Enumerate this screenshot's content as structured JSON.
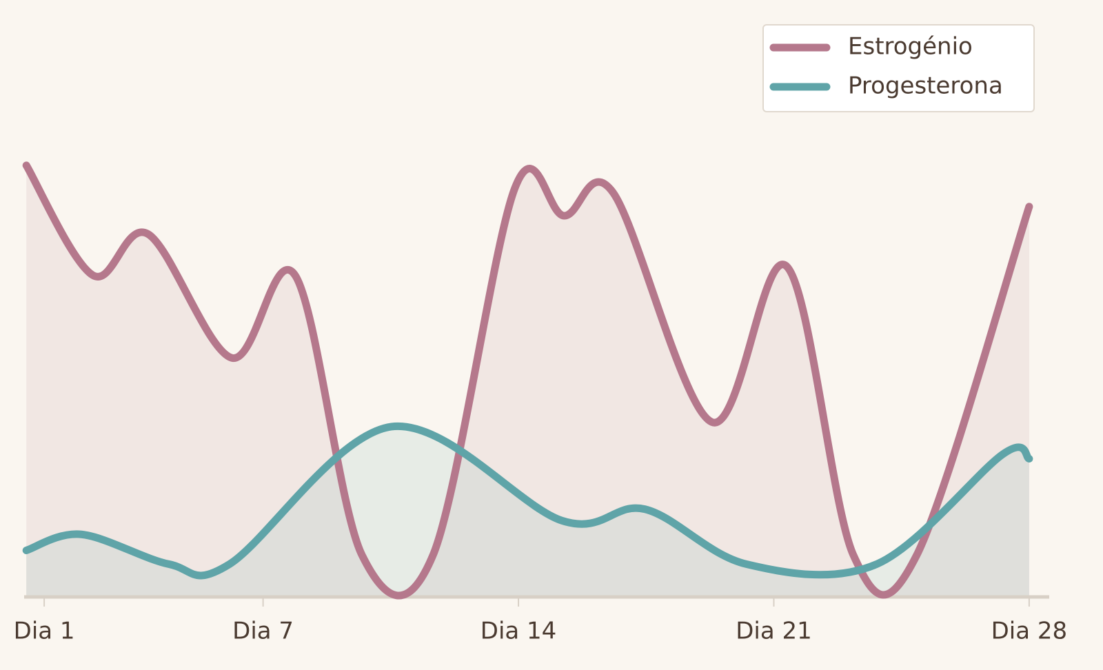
{
  "chart_data": {
    "type": "area",
    "xlim": [
      0.45,
      28.55
    ],
    "xticks": [
      {
        "value": 1,
        "label": "Dia 1"
      },
      {
        "value": 7,
        "label": "Dia 7"
      },
      {
        "value": 14,
        "label": "Dia 14"
      },
      {
        "value": 21,
        "label": "Dia 21"
      },
      {
        "value": 28,
        "label": "Dia 28"
      }
    ],
    "ylim": [
      0,
      100
    ],
    "legend": "upper right",
    "series": [
      {
        "name": "Estrogénio",
        "color": "#b5788c",
        "x": [
          0.51,
          2.34,
          3.85,
          6.14,
          7.88,
          9.71,
          11.66,
          13.9,
          15.25,
          16.6,
          19.3,
          21.35,
          23.18,
          24.92,
          28
        ],
        "values": [
          94,
          70,
          79,
          52,
          70,
          9,
          9,
          89,
          83,
          88,
          38,
          72,
          9,
          9,
          85
        ]
      },
      {
        "name": "Progesterona",
        "color": "#5fa4a8",
        "x": [
          0.51,
          2.02,
          4.42,
          6.08,
          10.52,
          15.19,
          17.46,
          20.25,
          23.82,
          27.28,
          28
        ],
        "values": [
          10,
          13.5,
          7,
          7,
          37,
          16.5,
          19,
          7,
          7,
          31,
          30
        ]
      }
    ]
  }
}
